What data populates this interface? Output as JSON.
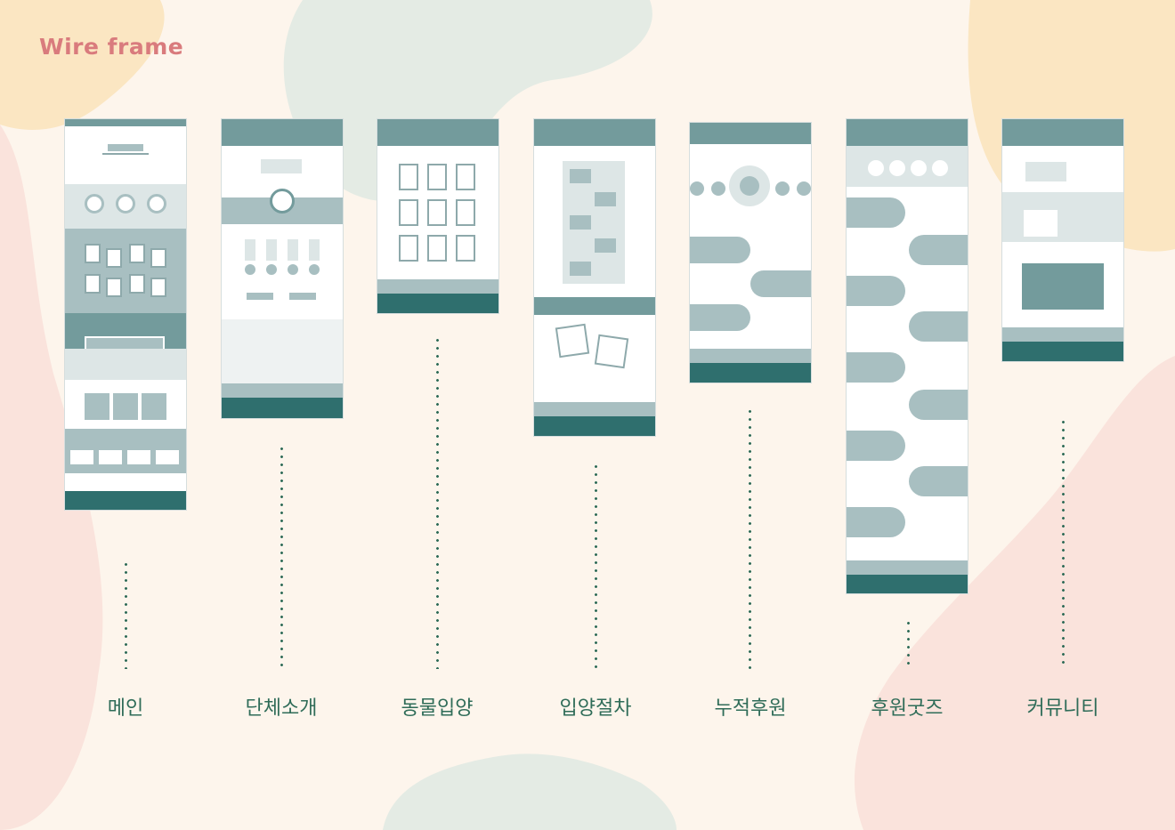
{
  "title": "Wire frame",
  "colors": {
    "background": "#fdf5ec",
    "title": "#d97b7d",
    "label": "#2f6c58",
    "wire_dark": "#2f6f6e",
    "wire_mid": "#739b9c",
    "wire_light": "#a8bfc1"
  },
  "pages": [
    {
      "label": "메인"
    },
    {
      "label": "단체소개"
    },
    {
      "label": "동물입양"
    },
    {
      "label": "입양절차"
    },
    {
      "label": "누적후원"
    },
    {
      "label": "후원굿즈"
    },
    {
      "label": "커뮤니티"
    }
  ]
}
